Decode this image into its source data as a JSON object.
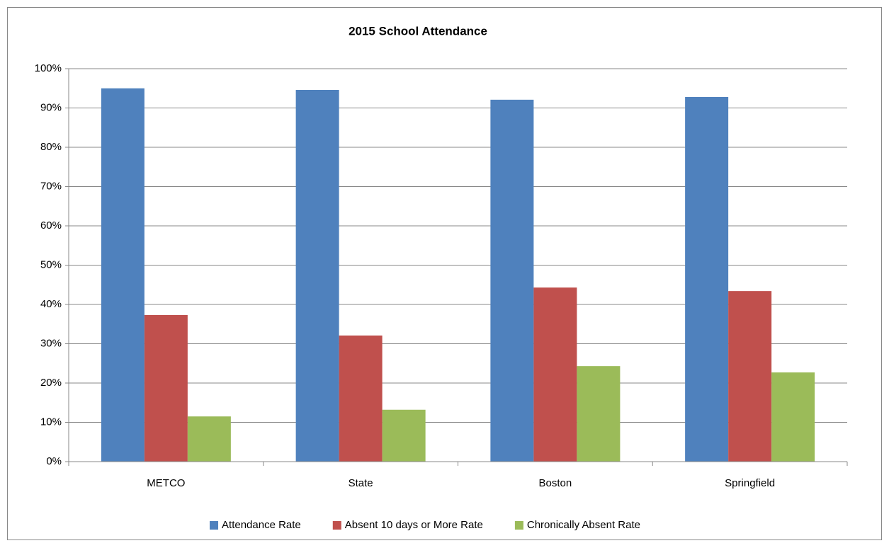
{
  "chart_data": {
    "type": "bar",
    "title": "2015 School Attendance",
    "categories": [
      "METCO",
      "State",
      "Boston",
      "Springfield"
    ],
    "series": [
      {
        "name": "Attendance Rate",
        "color": "#4f81bd",
        "values": [
          95.0,
          94.6,
          92.1,
          92.8
        ]
      },
      {
        "name": "Absent 10 days or More Rate",
        "color": "#c0504d",
        "values": [
          37.3,
          32.1,
          44.3,
          43.4
        ]
      },
      {
        "name": "Chronically Absent Rate",
        "color": "#9bbb59",
        "values": [
          11.5,
          13.2,
          24.3,
          22.7
        ]
      }
    ],
    "ylim": [
      0,
      100
    ],
    "yticks": [
      {
        "value": 0,
        "label": "0%"
      },
      {
        "value": 10,
        "label": "10%"
      },
      {
        "value": 20,
        "label": "20%"
      },
      {
        "value": 30,
        "label": "30%"
      },
      {
        "value": 40,
        "label": "40%"
      },
      {
        "value": 50,
        "label": "50%"
      },
      {
        "value": 60,
        "label": "60%"
      },
      {
        "value": 70,
        "label": "70%"
      },
      {
        "value": 80,
        "label": "80%"
      },
      {
        "value": 90,
        "label": "90%"
      },
      {
        "value": 100,
        "label": "100%"
      }
    ],
    "grid": true,
    "legend": "bottom"
  }
}
